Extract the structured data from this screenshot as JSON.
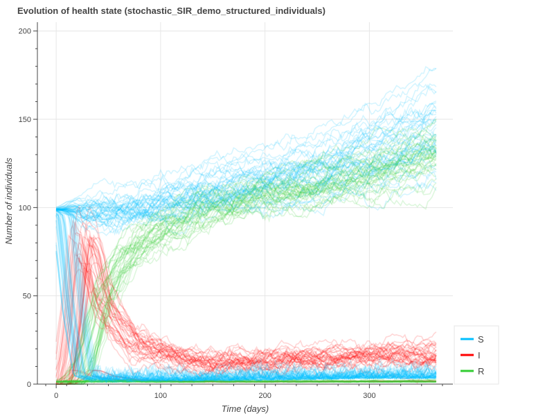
{
  "chart_data": {
    "type": "line",
    "title": "Evolution of health state (stochastic_SIR_demo_structured_individuals)",
    "xlabel": "Time (days)",
    "ylabel": "Number of individuals",
    "xlim": [
      -18,
      380
    ],
    "ylim": [
      0,
      205
    ],
    "xticks": [
      0,
      100,
      200,
      300
    ],
    "yticks": [
      0,
      50,
      100,
      150,
      200
    ],
    "grid": true,
    "legend_position": "bottom-right",
    "n_runs_per_series": 40,
    "series": [
      {
        "name": "S",
        "color": "#00bfff",
        "typical_path": [
          [
            0,
            99
          ],
          [
            5,
            99
          ],
          [
            15,
            99
          ],
          [
            25,
            98
          ],
          [
            40,
            99
          ],
          [
            80,
            101
          ],
          [
            150,
            110
          ],
          [
            250,
            122
          ],
          [
            365,
            145
          ]
        ],
        "spread_path": [
          [
            0,
            1
          ],
          [
            15,
            3
          ],
          [
            40,
            6
          ],
          [
            100,
            10
          ],
          [
            200,
            15
          ],
          [
            300,
            22
          ],
          [
            365,
            30
          ]
        ],
        "depleted_path": [
          [
            0,
            99
          ],
          [
            8,
            95
          ],
          [
            18,
            40
          ],
          [
            28,
            5
          ],
          [
            45,
            1
          ],
          [
            100,
            1.5
          ],
          [
            200,
            2
          ],
          [
            300,
            3
          ],
          [
            365,
            3
          ]
        ]
      },
      {
        "name": "I",
        "color": "#ff0000",
        "typical_path": [
          [
            0,
            0
          ],
          [
            8,
            2
          ],
          [
            18,
            40
          ],
          [
            25,
            80
          ],
          [
            32,
            75
          ],
          [
            45,
            45
          ],
          [
            70,
            25
          ],
          [
            100,
            17
          ],
          [
            150,
            13
          ],
          [
            200,
            13
          ],
          [
            300,
            16
          ],
          [
            365,
            17
          ]
        ],
        "spread_path": [
          [
            0,
            0
          ],
          [
            18,
            25
          ],
          [
            30,
            15
          ],
          [
            60,
            10
          ],
          [
            120,
            4
          ],
          [
            200,
            4
          ],
          [
            300,
            5
          ],
          [
            365,
            6
          ]
        ]
      },
      {
        "name": "R",
        "color": "#32cd32",
        "typical_path": [
          [
            0,
            0
          ],
          [
            18,
            0
          ],
          [
            30,
            15
          ],
          [
            45,
            50
          ],
          [
            70,
            75
          ],
          [
            100,
            88
          ],
          [
            150,
            100
          ],
          [
            200,
            108
          ],
          [
            300,
            120
          ],
          [
            365,
            132
          ]
        ],
        "spread_path": [
          [
            0,
            0
          ],
          [
            30,
            10
          ],
          [
            60,
            8
          ],
          [
            100,
            6
          ],
          [
            200,
            7
          ],
          [
            300,
            10
          ],
          [
            365,
            12
          ]
        ],
        "extinct_level": 1
      }
    ]
  }
}
